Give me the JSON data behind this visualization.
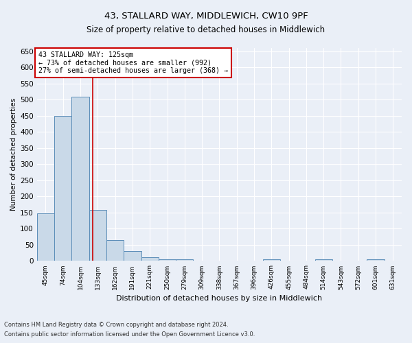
{
  "title1": "43, STALLARD WAY, MIDDLEWICH, CW10 9PF",
  "title2": "Size of property relative to detached houses in Middlewich",
  "xlabel": "Distribution of detached houses by size in Middlewich",
  "ylabel": "Number of detached properties",
  "categories": [
    "45sqm",
    "74sqm",
    "104sqm",
    "133sqm",
    "162sqm",
    "191sqm",
    "221sqm",
    "250sqm",
    "279sqm",
    "309sqm",
    "338sqm",
    "367sqm",
    "396sqm",
    "426sqm",
    "455sqm",
    "484sqm",
    "514sqm",
    "543sqm",
    "572sqm",
    "601sqm",
    "631sqm"
  ],
  "values": [
    148,
    449,
    508,
    158,
    65,
    30,
    12,
    6,
    5,
    0,
    0,
    0,
    0,
    5,
    0,
    0,
    5,
    0,
    0,
    5,
    0
  ],
  "bar_color": "#c9d9e8",
  "bar_edge_color": "#5b8db8",
  "red_line_x": 2.73,
  "annotation_title": "43 STALLARD WAY: 125sqm",
  "annotation_line1": "← 73% of detached houses are smaller (992)",
  "annotation_line2": "27% of semi-detached houses are larger (368) →",
  "annotation_box_color": "#ffffff",
  "annotation_box_edge": "#cc0000",
  "ylim": [
    0,
    660
  ],
  "yticks": [
    0,
    50,
    100,
    150,
    200,
    250,
    300,
    350,
    400,
    450,
    500,
    550,
    600,
    650
  ],
  "footnote1": "Contains HM Land Registry data © Crown copyright and database right 2024.",
  "footnote2": "Contains public sector information licensed under the Open Government Licence v3.0.",
  "bg_color": "#eaeff7",
  "plot_bg_color": "#eaeff7"
}
